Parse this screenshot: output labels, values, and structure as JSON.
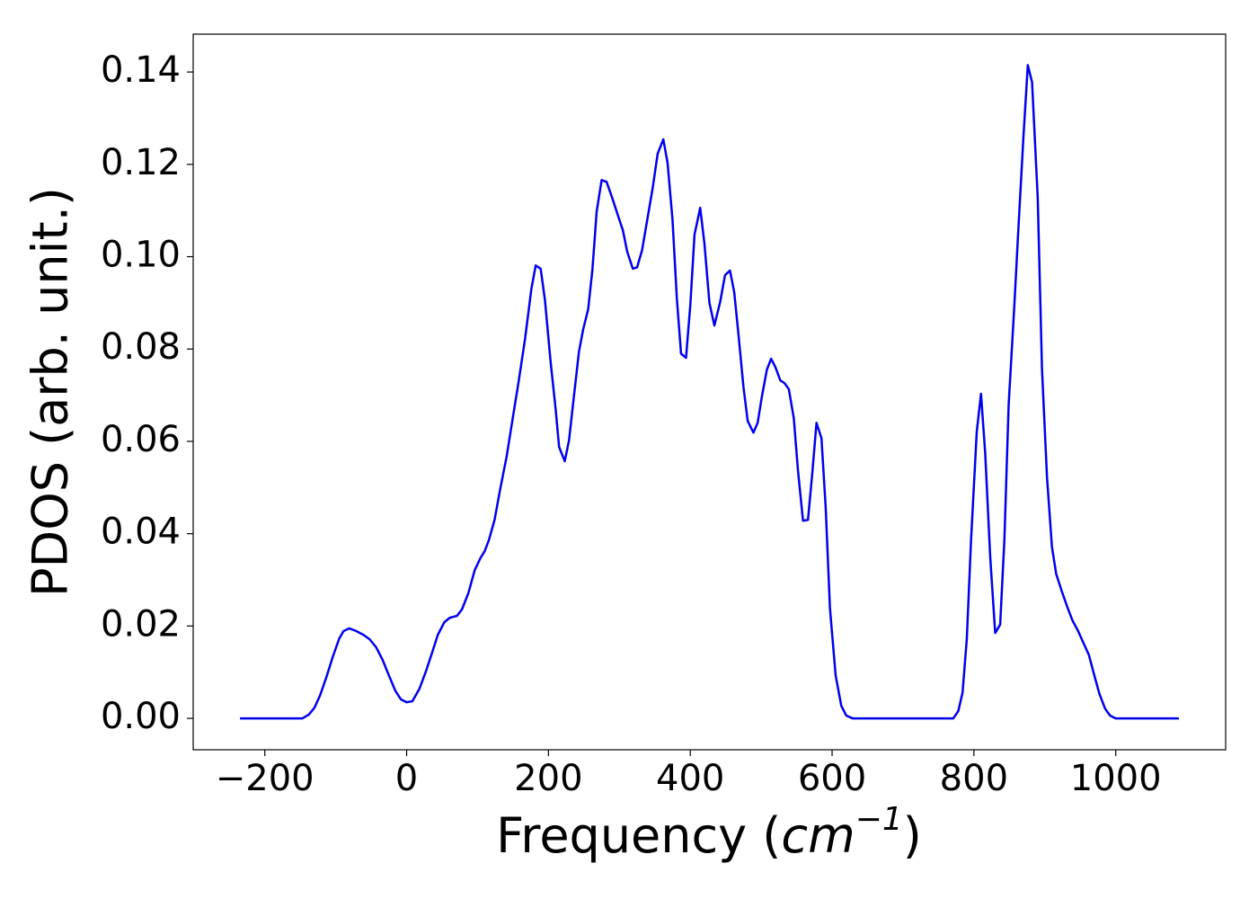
{
  "chart_data": {
    "type": "line",
    "xlabel": [
      "Frequency (",
      "cm",
      "−1",
      ")"
    ],
    "ylabel": "PDOS (arb. unit.)",
    "xlim": [
      -301,
      1155
    ],
    "ylim": [
      -0.0068,
      0.1482
    ],
    "xticks": [
      {
        "value": -200,
        "label": "−200"
      },
      0,
      200,
      400,
      600,
      800,
      1000
    ],
    "yticks": [
      {
        "value": 0,
        "label": "0.00"
      },
      {
        "value": 0.02,
        "label": "0.02"
      },
      {
        "value": 0.04,
        "label": "0.04"
      },
      {
        "value": 0.06,
        "label": "0.06"
      },
      {
        "value": 0.08,
        "label": "0.08"
      },
      {
        "value": 0.1,
        "label": "0.10"
      },
      {
        "value": 0.12,
        "label": "0.12"
      },
      {
        "value": 0.14,
        "label": "0.14"
      }
    ],
    "grid": false,
    "x": [
      -235,
      -147,
      -138,
      -130,
      -122,
      -113,
      -104,
      -95,
      -89,
      -81,
      -71,
      -61,
      -52,
      -43,
      -34,
      -25,
      -16,
      -8,
      0,
      8,
      18,
      27,
      35,
      44,
      53,
      61,
      71,
      78,
      87,
      96,
      104,
      110,
      116,
      124,
      132,
      141,
      149,
      158,
      167,
      176,
      182,
      189,
      195,
      203,
      210,
      215,
      223,
      229,
      235,
      243,
      249,
      256,
      262,
      268,
      275,
      282,
      290,
      297,
      305,
      311,
      319,
      325,
      332,
      339,
      347,
      354,
      362,
      368,
      375,
      381,
      387,
      394,
      400,
      406,
      414,
      420,
      427,
      434,
      442,
      449,
      456,
      462,
      468,
      475,
      481,
      489,
      495,
      501,
      508,
      514,
      520,
      527,
      533,
      539,
      546,
      552,
      559,
      566,
      572,
      578,
      585,
      591,
      597,
      605,
      613,
      620,
      629,
      771,
      778,
      784,
      790,
      796,
      804,
      810,
      816,
      823,
      830,
      837,
      843,
      849,
      857,
      863,
      870,
      876,
      882,
      890,
      896,
      903,
      910,
      916,
      924,
      932,
      939,
      947,
      954,
      962,
      970,
      977,
      985,
      992,
      1000,
      1089
    ],
    "series": [
      {
        "name": "PDOS",
        "color": "#0000ee",
        "values": [
          0,
          0,
          0.0008,
          0.0023,
          0.005,
          0.009,
          0.0134,
          0.0173,
          0.0189,
          0.0195,
          0.0189,
          0.0181,
          0.0171,
          0.0154,
          0.0127,
          0.0093,
          0.006,
          0.0041,
          0.0035,
          0.0037,
          0.0064,
          0.0101,
          0.0138,
          0.0181,
          0.0208,
          0.0218,
          0.0222,
          0.0236,
          0.0271,
          0.0321,
          0.0347,
          0.0362,
          0.0386,
          0.043,
          0.0497,
          0.0567,
          0.0644,
          0.073,
          0.0822,
          0.0931,
          0.0981,
          0.0974,
          0.0907,
          0.0773,
          0.0672,
          0.0588,
          0.0557,
          0.0602,
          0.0685,
          0.0794,
          0.0843,
          0.0886,
          0.0972,
          0.1098,
          0.1166,
          0.1162,
          0.1127,
          0.1094,
          0.1057,
          0.1011,
          0.0974,
          0.0977,
          0.1014,
          0.1077,
          0.1149,
          0.1223,
          0.1254,
          0.1203,
          0.1079,
          0.0911,
          0.079,
          0.0781,
          0.0894,
          0.1048,
          0.1106,
          0.1028,
          0.09,
          0.0851,
          0.0901,
          0.096,
          0.097,
          0.0923,
          0.0831,
          0.0718,
          0.0644,
          0.0619,
          0.064,
          0.0697,
          0.0755,
          0.0779,
          0.0761,
          0.0732,
          0.0726,
          0.0713,
          0.065,
          0.0535,
          0.0428,
          0.043,
          0.053,
          0.064,
          0.0607,
          0.0456,
          0.0238,
          0.0093,
          0.0027,
          0.0006,
          0,
          0,
          0.0016,
          0.0056,
          0.0173,
          0.0387,
          0.0621,
          0.0703,
          0.0572,
          0.0349,
          0.0185,
          0.0203,
          0.0387,
          0.068,
          0.0894,
          0.1069,
          0.1264,
          0.1415,
          0.1378,
          0.1127,
          0.0757,
          0.0524,
          0.0372,
          0.0313,
          0.0275,
          0.024,
          0.0212,
          0.0189,
          0.0165,
          0.0138,
          0.0092,
          0.0053,
          0.0021,
          0.0006,
          0,
          0
        ]
      }
    ]
  }
}
